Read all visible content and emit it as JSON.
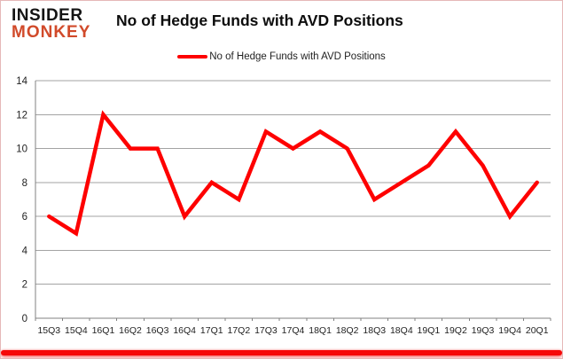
{
  "branding": {
    "logo_line1": "INSIDER",
    "logo_line2": "MONKEY",
    "logo_accent_color": "#d14a2a"
  },
  "header": {
    "title": "No of Hedge Funds with AVD Positions"
  },
  "chart_data": {
    "type": "line",
    "title": "No of Hedge Funds with AVD Positions",
    "categories": [
      "15Q3",
      "15Q4",
      "16Q1",
      "16Q2",
      "16Q3",
      "16Q4",
      "17Q1",
      "17Q2",
      "17Q3",
      "17Q4",
      "18Q1",
      "18Q2",
      "18Q3",
      "18Q4",
      "19Q1",
      "19Q2",
      "19Q3",
      "19Q4",
      "20Q1"
    ],
    "series": [
      {
        "name": "No of Hedge Funds with AVD Positions",
        "color": "#fe0000",
        "values": [
          6,
          5,
          12,
          10,
          10,
          6,
          8,
          7,
          11,
          10,
          11,
          10,
          7,
          8,
          9,
          11,
          9,
          6,
          8
        ]
      }
    ],
    "xlabel": "",
    "ylabel": "",
    "ylim": [
      0,
      14
    ],
    "ytick_step": 2,
    "grid": true,
    "legend_position": "top-center",
    "colors": {
      "grid": "#a3a3a3",
      "axis": "#808080",
      "tick_label": "#1f1f1f",
      "background": "#ffffff",
      "border": "#e6b8b8",
      "bottom_bar": "#f60909"
    }
  }
}
